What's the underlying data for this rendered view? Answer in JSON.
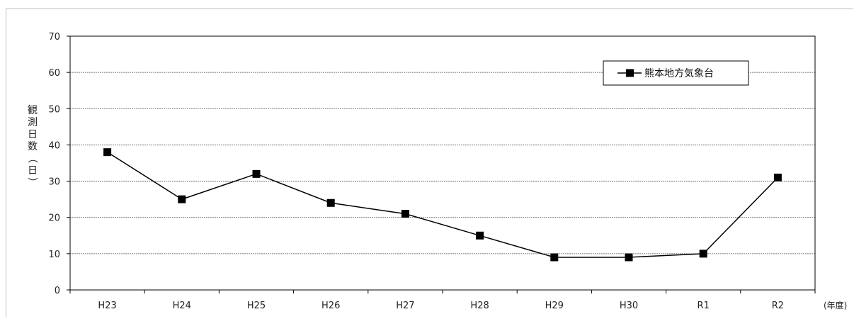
{
  "chart_data": {
    "type": "line",
    "categories": [
      "H23",
      "H24",
      "H25",
      "H26",
      "H27",
      "H28",
      "H29",
      "H30",
      "R1",
      "R2"
    ],
    "series": [
      {
        "name": "熊本地方気象台",
        "values": [
          38,
          25,
          32,
          24,
          21,
          15,
          9,
          9,
          10,
          31
        ]
      }
    ],
    "ylabel": "観測日数（日）",
    "x_unit": "(年度)",
    "ylim": [
      0,
      70
    ],
    "yticks": [
      0,
      10,
      20,
      30,
      40,
      50,
      60,
      70
    ],
    "grid": true,
    "legend_position": "top-right",
    "line_color": "#000000"
  }
}
